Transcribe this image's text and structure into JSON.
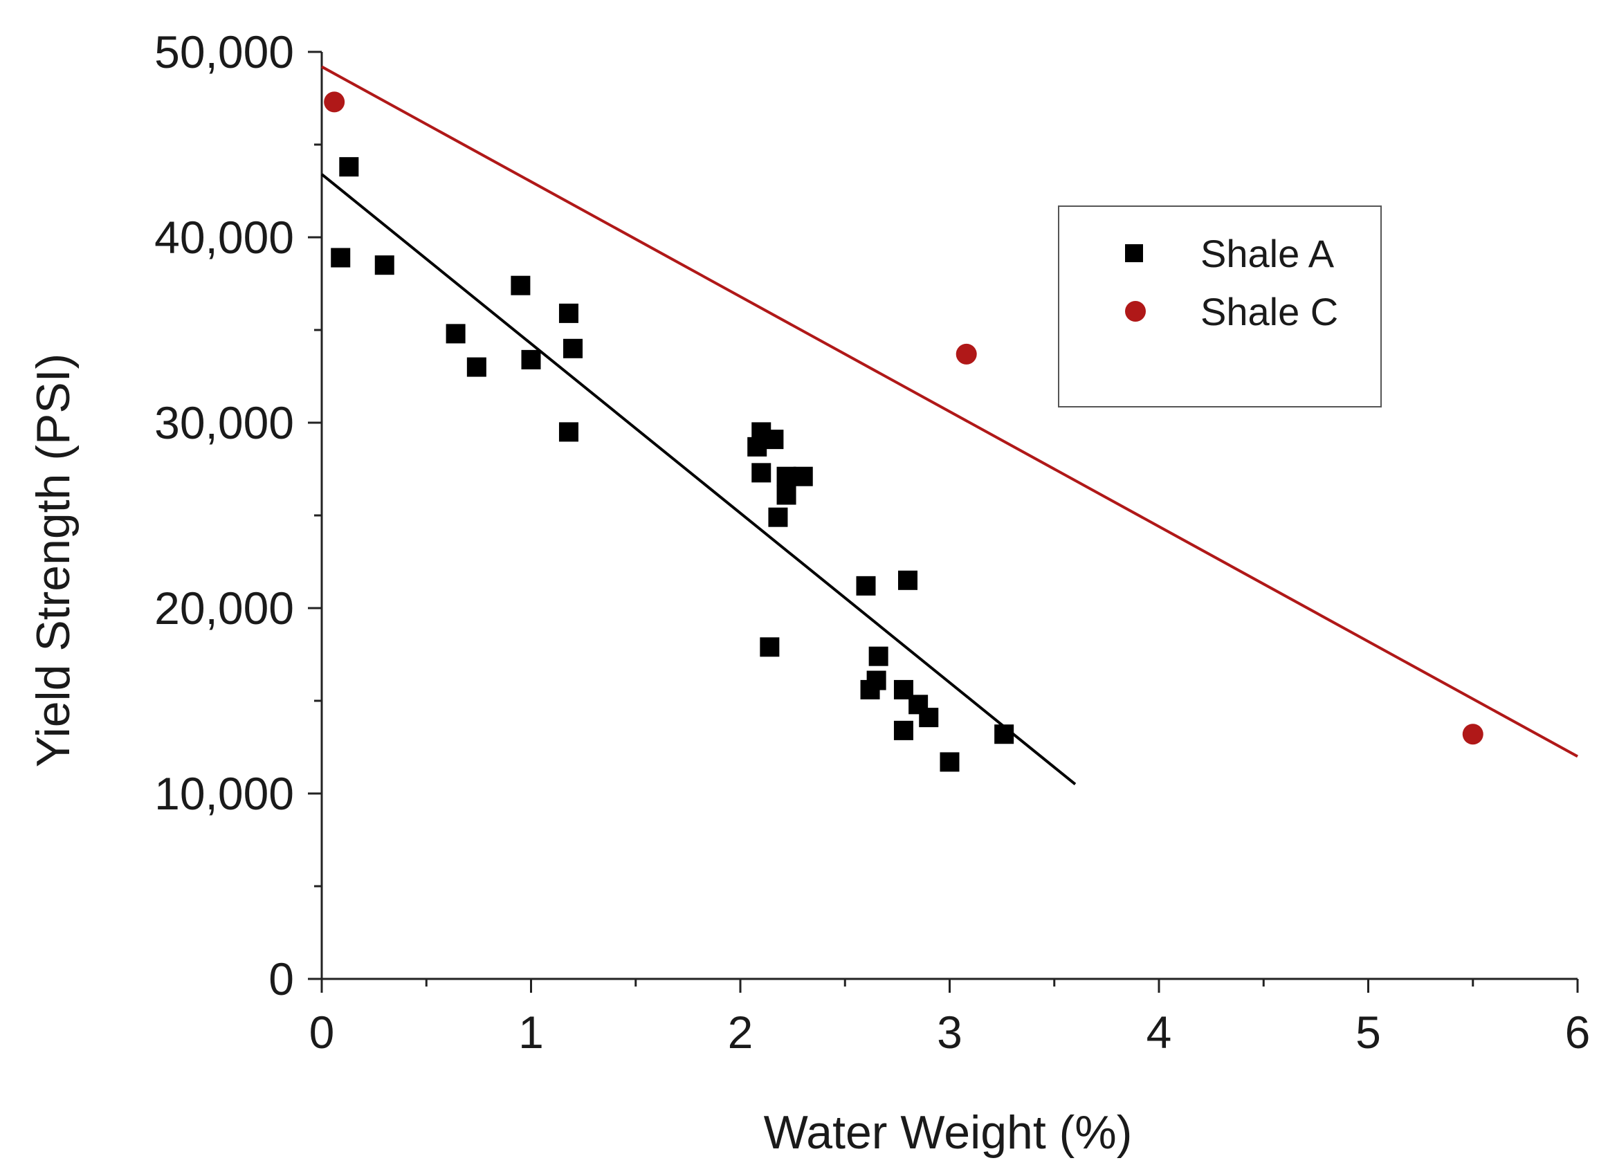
{
  "chart_data": {
    "type": "scatter",
    "title": "",
    "xlabel": "Water Weight (%)",
    "ylabel": "Yield Strength (PSI)",
    "xlim": [
      0,
      6
    ],
    "ylim": [
      0,
      50000
    ],
    "x_ticks": [
      0,
      1,
      2,
      3,
      4,
      5,
      6
    ],
    "x_tick_labels": [
      "0",
      "1",
      "2",
      "3",
      "4",
      "5",
      "6"
    ],
    "y_ticks": [
      0,
      10000,
      20000,
      30000,
      40000,
      50000
    ],
    "y_tick_labels": [
      "0",
      "10,000",
      "20,000",
      "30,000",
      "40,000",
      "50,000"
    ],
    "grid": false,
    "legend_position": "top-right",
    "series": [
      {
        "name": "Shale A",
        "marker": "square",
        "color": "#000000",
        "points": [
          [
            0.13,
            43800
          ],
          [
            0.09,
            38900
          ],
          [
            0.3,
            38500
          ],
          [
            0.95,
            37400
          ],
          [
            1.18,
            35900
          ],
          [
            0.64,
            34800
          ],
          [
            1.2,
            34000
          ],
          [
            1.0,
            33400
          ],
          [
            0.74,
            33000
          ],
          [
            1.18,
            29500
          ],
          [
            2.1,
            29500
          ],
          [
            2.16,
            29100
          ],
          [
            2.08,
            28700
          ],
          [
            2.1,
            27300
          ],
          [
            2.22,
            27100
          ],
          [
            2.3,
            27100
          ],
          [
            2.22,
            26100
          ],
          [
            2.18,
            24900
          ],
          [
            2.6,
            21200
          ],
          [
            2.8,
            21500
          ],
          [
            2.14,
            17900
          ],
          [
            2.66,
            17400
          ],
          [
            2.65,
            16100
          ],
          [
            2.62,
            15600
          ],
          [
            2.78,
            15600
          ],
          [
            2.85,
            14800
          ],
          [
            2.9,
            14100
          ],
          [
            2.78,
            13400
          ],
          [
            3.26,
            13200
          ],
          [
            3.0,
            11700
          ]
        ],
        "fit": {
          "x": [
            0,
            3.6
          ],
          "y": [
            43400,
            10500
          ]
        }
      },
      {
        "name": "Shale C",
        "marker": "circle",
        "color": "#b01818",
        "points": [
          [
            0.06,
            47300
          ],
          [
            3.08,
            33700
          ],
          [
            5.5,
            13200
          ]
        ],
        "fit": {
          "x": [
            0,
            6
          ],
          "y": [
            49200,
            12000
          ]
        }
      }
    ]
  }
}
